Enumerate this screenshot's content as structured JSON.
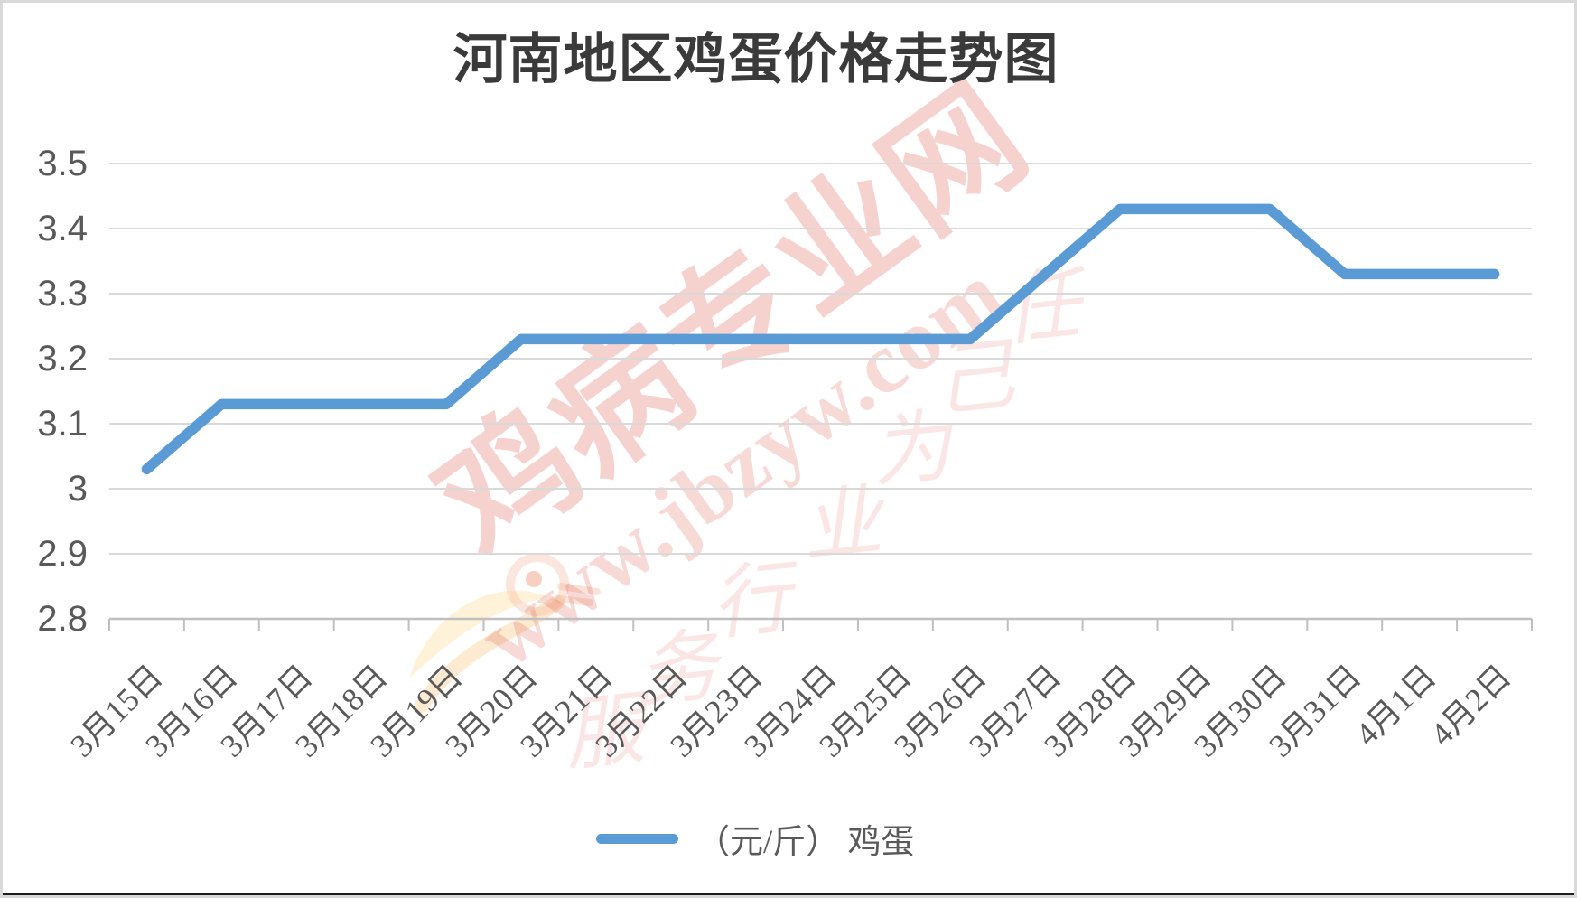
{
  "title": {
    "text": "河南地区鸡蛋价格走势图"
  },
  "legend": {
    "label": "（元/斤） 鸡蛋"
  },
  "y_axis": {
    "tick_labels": [
      "3.5",
      "3.4",
      "3.3",
      "3.2",
      "3.1",
      "3",
      "2.9",
      "2.8"
    ]
  },
  "watermark": {
    "brand": "鸡病专业网",
    "url": "www.jbzyw.com",
    "slogan_chars": [
      "服",
      "务",
      "行",
      "业",
      "为",
      "己",
      "任"
    ]
  },
  "colors": {
    "line": "#5B9BD5",
    "grid": "#D9D9D9",
    "axis": "#BFBFBF",
    "label_text": "#595959",
    "title_text": "#3A3A3A",
    "watermark_red": "#DB5046",
    "bird_orange": "#F2B268"
  },
  "chart_data": {
    "type": "line",
    "title": "河南地区鸡蛋价格走势图",
    "categories": [
      "3月15日",
      "3月16日",
      "3月17日",
      "3月18日",
      "3月19日",
      "3月20日",
      "3月21日",
      "3月22日",
      "3月23日",
      "3月24日",
      "3月25日",
      "3月26日",
      "3月27日",
      "3月28日",
      "3月29日",
      "3月30日",
      "3月31日",
      "4月1日",
      "4月2日"
    ],
    "series": [
      {
        "name": "（元/斤） 鸡蛋",
        "unit": "元/斤",
        "color": "#5B9BD5",
        "values": [
          3.03,
          3.13,
          3.13,
          3.13,
          3.13,
          3.23,
          3.23,
          3.23,
          3.23,
          3.23,
          3.23,
          3.23,
          3.33,
          3.43,
          3.43,
          3.43,
          3.33,
          3.33,
          3.33
        ]
      }
    ],
    "xlabel": "",
    "ylabel": "",
    "ylim": [
      2.8,
      3.5
    ],
    "ytick_step": 0.1,
    "grid": true,
    "legend_position": "bottom"
  }
}
